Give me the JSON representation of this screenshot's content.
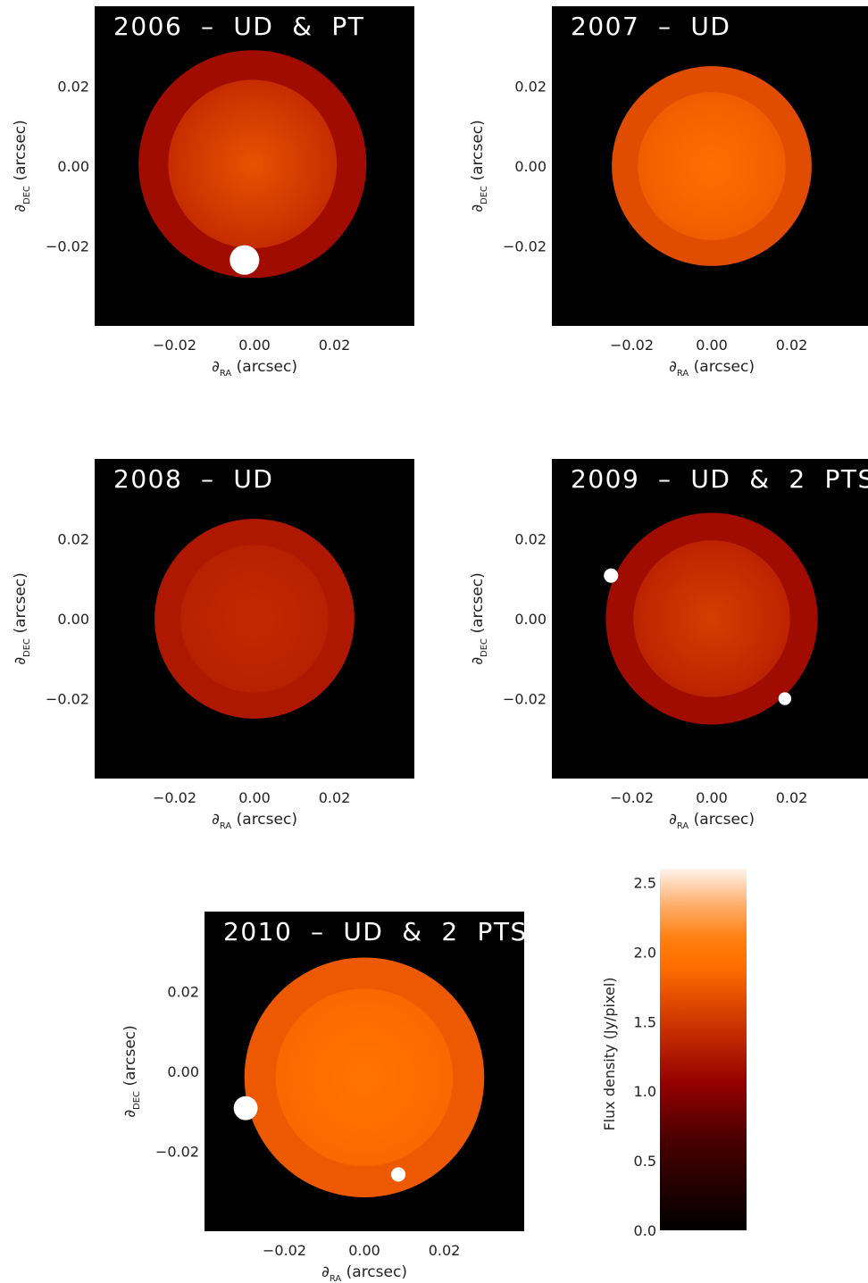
{
  "chart_data": [
    {
      "type": "heatmap",
      "title": "2006 – UD & PT",
      "xlabel": {
        "sym": "∂",
        "sub": "RA",
        "rest": " (arcsec)"
      },
      "ylabel": {
        "sym": "∂",
        "sub": "DEC",
        "rest": " (arcsec)"
      },
      "xlim": [
        -0.04,
        0.04
      ],
      "ylim": [
        -0.04,
        0.04
      ],
      "xticks": [
        {
          "v": -0.02,
          "label": "−0.02"
        },
        {
          "v": 0.0,
          "label": "0.00"
        },
        {
          "v": 0.02,
          "label": "0.02"
        }
      ],
      "yticks": [
        {
          "v": 0.02,
          "label": "0.02"
        },
        {
          "v": 0.0,
          "label": "0.00"
        },
        {
          "v": -0.02,
          "label": "−0.02"
        }
      ],
      "disk": {
        "cx": -0.0005,
        "cy": 0.0005,
        "r": 0.0285,
        "edge_flux": 1.15,
        "center_flux": 1.7
      },
      "points": [
        {
          "x": -0.0025,
          "y": -0.0235,
          "r": 0.0037
        }
      ]
    },
    {
      "type": "heatmap",
      "title": "2007 – UD",
      "xlabel": {
        "sym": "∂",
        "sub": "RA",
        "rest": " (arcsec)"
      },
      "ylabel": {
        "sym": "∂",
        "sub": "DEC",
        "rest": " (arcsec)"
      },
      "xlim": [
        -0.04,
        0.04
      ],
      "ylim": [
        -0.04,
        0.04
      ],
      "xticks": [
        {
          "v": -0.02,
          "label": "−0.02"
        },
        {
          "v": 0.0,
          "label": "0.00"
        },
        {
          "v": 0.02,
          "label": "0.02"
        }
      ],
      "yticks": [
        {
          "v": 0.02,
          "label": "0.02"
        },
        {
          "v": 0.0,
          "label": "0.00"
        },
        {
          "v": -0.02,
          "label": "−0.02"
        }
      ],
      "disk": {
        "cx": 0.0,
        "cy": 0.0,
        "r": 0.025,
        "edge_flux": 1.65,
        "center_flux": 1.9
      },
      "points": []
    },
    {
      "type": "heatmap",
      "title": "2008 – UD",
      "xlabel": {
        "sym": "∂",
        "sub": "RA",
        "rest": " (arcsec)"
      },
      "ylabel": {
        "sym": "∂",
        "sub": "DEC",
        "rest": " (arcsec)"
      },
      "xlim": [
        -0.04,
        0.04
      ],
      "ylim": [
        -0.04,
        0.04
      ],
      "xticks": [
        {
          "v": -0.02,
          "label": "−0.02"
        },
        {
          "v": 0.0,
          "label": "0.00"
        },
        {
          "v": 0.02,
          "label": "0.02"
        }
      ],
      "yticks": [
        {
          "v": 0.02,
          "label": "0.02"
        },
        {
          "v": 0.0,
          "label": "0.00"
        },
        {
          "v": -0.02,
          "label": "−0.02"
        }
      ],
      "disk": {
        "cx": 0.0,
        "cy": 0.0,
        "r": 0.025,
        "edge_flux": 1.25,
        "center_flux": 1.4
      },
      "points": []
    },
    {
      "type": "heatmap",
      "title": "2009 – UD & 2 PTS",
      "xlabel": {
        "sym": "∂",
        "sub": "RA",
        "rest": " (arcsec)"
      },
      "ylabel": {
        "sym": "∂",
        "sub": "DEC",
        "rest": " (arcsec)"
      },
      "xlim": [
        -0.04,
        0.04
      ],
      "ylim": [
        -0.04,
        0.04
      ],
      "xticks": [
        {
          "v": -0.02,
          "label": "−0.02"
        },
        {
          "v": 0.0,
          "label": "0.00"
        },
        {
          "v": 0.02,
          "label": "0.02"
        }
      ],
      "yticks": [
        {
          "v": 0.02,
          "label": "0.02"
        },
        {
          "v": 0.0,
          "label": "0.00"
        },
        {
          "v": -0.02,
          "label": "−0.02"
        }
      ],
      "disk": {
        "cx": 0.0,
        "cy": 0.0,
        "r": 0.0265,
        "edge_flux": 1.15,
        "center_flux": 1.55
      },
      "points": [
        {
          "x": -0.0252,
          "y": 0.0108,
          "r": 0.0018
        },
        {
          "x": 0.0183,
          "y": -0.02,
          "r": 0.0016
        }
      ]
    },
    {
      "type": "heatmap",
      "title": "2010 – UD & 2 PTS",
      "xlabel": {
        "sym": "∂",
        "sub": "RA",
        "rest": " (arcsec)"
      },
      "ylabel": {
        "sym": "∂",
        "sub": "DEC",
        "rest": " (arcsec)"
      },
      "xlim": [
        -0.04,
        0.04
      ],
      "ylim": [
        -0.04,
        0.04
      ],
      "xticks": [
        {
          "v": -0.02,
          "label": "−0.02"
        },
        {
          "v": 0.0,
          "label": "0.00"
        },
        {
          "v": 0.02,
          "label": "0.02"
        }
      ],
      "yticks": [
        {
          "v": 0.02,
          "label": "0.02"
        },
        {
          "v": 0.0,
          "label": "0.00"
        },
        {
          "v": -0.02,
          "label": "−0.02"
        }
      ],
      "disk": {
        "cx": 0.0,
        "cy": -0.0015,
        "r": 0.03,
        "edge_flux": 1.75,
        "center_flux": 1.95
      },
      "points": [
        {
          "x": -0.0297,
          "y": -0.0092,
          "r": 0.003
        },
        {
          "x": 0.0085,
          "y": -0.0258,
          "r": 0.0018
        }
      ]
    },
    {
      "type": "colorbar",
      "label": "Flux density (Jy/pixel)",
      "range": [
        0.0,
        2.6
      ],
      "ticks": [
        {
          "v": 0.0,
          "label": "0.0"
        },
        {
          "v": 0.5,
          "label": "0.5"
        },
        {
          "v": 1.0,
          "label": "1.0"
        },
        {
          "v": 1.5,
          "label": "1.5"
        },
        {
          "v": 2.0,
          "label": "2.0"
        },
        {
          "v": 2.5,
          "label": "2.5"
        }
      ],
      "colormap": [
        {
          "v": 0.0,
          "color": "#000000"
        },
        {
          "v": 0.65,
          "color": "#4a0000"
        },
        {
          "v": 1.05,
          "color": "#930000"
        },
        {
          "v": 1.45,
          "color": "#c83000"
        },
        {
          "v": 1.9,
          "color": "#ff6e00"
        },
        {
          "v": 2.1,
          "color": "#ff8010"
        },
        {
          "v": 2.35,
          "color": "#ffb070"
        },
        {
          "v": 2.6,
          "color": "#fff4ec"
        }
      ]
    }
  ]
}
